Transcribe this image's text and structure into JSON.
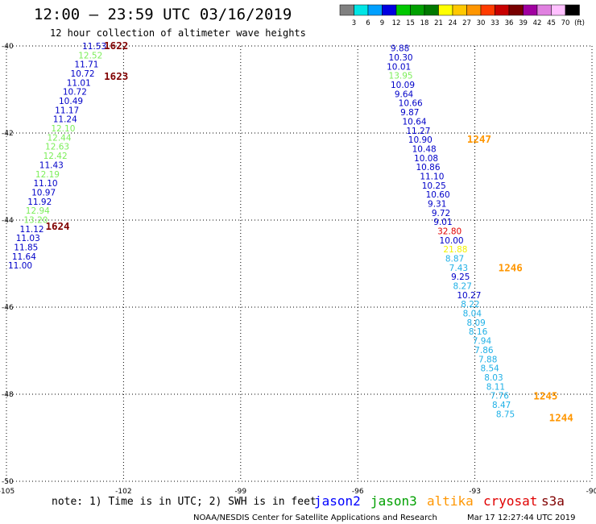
{
  "chart_data": {
    "type": "scatter",
    "title": "12:00 – 23:59 UTC 03/16/2019",
    "subtitle": "12 hour collection of altimeter wave heights",
    "x_ticks": [
      "-105",
      "-102",
      "-99",
      "-96",
      "-93",
      "-90"
    ],
    "y_ticks": [
      "-40",
      "-42",
      "-44",
      "-46",
      "-48",
      "-50"
    ],
    "xlim": [
      -105,
      -90
    ],
    "ylim": [
      -50,
      -40
    ],
    "grid": true,
    "units": "ft",
    "colorbar": {
      "labels": [
        "3",
        "6",
        "9",
        "12",
        "15",
        "18",
        "21",
        "24",
        "27",
        "30",
        "33",
        "36",
        "39",
        "42",
        "45",
        "70",
        "(ft)"
      ],
      "colors": [
        "#808080",
        "#00e5e5",
        "#00a0ff",
        "#0000e0",
        "#00c800",
        "#00a000",
        "#007800",
        "#ffff00",
        "#ffc800",
        "#ff9600",
        "#ff3c00",
        "#c80000",
        "#780000",
        "#a000a0",
        "#e080e0",
        "#ffc0ff",
        "#000000"
      ]
    },
    "series": [
      {
        "points": [
          {
            "lon": -103.1,
            "lat": -40.0,
            "value": "11.53",
            "color": "#0000c8"
          },
          {
            "lon": -103.2,
            "lat": -40.21,
            "value": "12.52",
            "color": "#7cee5a"
          },
          {
            "lon": -103.3,
            "lat": -40.42,
            "value": "11.71",
            "color": "#0000c8"
          },
          {
            "lon": -103.4,
            "lat": -40.63,
            "value": "10.72",
            "color": "#0000c8"
          },
          {
            "lon": -103.5,
            "lat": -40.84,
            "value": "11.01",
            "color": "#0000c8"
          },
          {
            "lon": -103.6,
            "lat": -41.05,
            "value": "10.72",
            "color": "#0000c8"
          },
          {
            "lon": -103.7,
            "lat": -41.26,
            "value": "10.49",
            "color": "#0000c8"
          },
          {
            "lon": -103.8,
            "lat": -41.47,
            "value": "11.17",
            "color": "#0000c8"
          },
          {
            "lon": -103.85,
            "lat": -41.68,
            "value": "11.24",
            "color": "#0000c8"
          },
          {
            "lon": -103.9,
            "lat": -41.89,
            "value": "12.10",
            "color": "#7cee5a"
          },
          {
            "lon": -104.0,
            "lat": -42.1,
            "value": "12.44",
            "color": "#7cee5a"
          },
          {
            "lon": -104.05,
            "lat": -42.31,
            "value": "12.63",
            "color": "#7cee5a"
          },
          {
            "lon": -104.1,
            "lat": -42.52,
            "value": "12.42",
            "color": "#7cee5a"
          },
          {
            "lon": -104.2,
            "lat": -42.73,
            "value": "11.43",
            "color": "#0000c8"
          },
          {
            "lon": -104.3,
            "lat": -42.94,
            "value": "12.19",
            "color": "#7cee5a"
          },
          {
            "lon": -104.35,
            "lat": -43.15,
            "value": "11.10",
            "color": "#0000c8"
          },
          {
            "lon": -104.4,
            "lat": -43.36,
            "value": "10.97",
            "color": "#0000c8"
          },
          {
            "lon": -104.5,
            "lat": -43.57,
            "value": "11.92",
            "color": "#0000c8"
          },
          {
            "lon": -104.55,
            "lat": -43.78,
            "value": "12.94",
            "color": "#7cee5a"
          },
          {
            "lon": -104.6,
            "lat": -43.99,
            "value": "13.20",
            "color": "#7cee5a"
          },
          {
            "lon": -104.7,
            "lat": -44.2,
            "value": "11.12",
            "color": "#0000c8"
          },
          {
            "lon": -104.8,
            "lat": -44.41,
            "value": "11.03",
            "color": "#0000c8"
          },
          {
            "lon": -104.85,
            "lat": -44.62,
            "value": "11.85",
            "color": "#0000c8"
          },
          {
            "lon": -104.9,
            "lat": -44.83,
            "value": "11.64",
            "color": "#0000c8"
          },
          {
            "lon": -105.0,
            "lat": -45.04,
            "value": "11.00",
            "color": "#0000c8"
          },
          {
            "lon": -95.2,
            "lat": -40.05,
            "value": "9.88",
            "color": "#0000c8"
          },
          {
            "lon": -95.25,
            "lat": -40.26,
            "value": "10.30",
            "color": "#0000c8"
          },
          {
            "lon": -95.3,
            "lat": -40.47,
            "value": "10.01",
            "color": "#0000c8"
          },
          {
            "lon": -95.25,
            "lat": -40.68,
            "value": "13.95",
            "color": "#7cee5a"
          },
          {
            "lon": -95.2,
            "lat": -40.89,
            "value": "10.09",
            "color": "#0000c8"
          },
          {
            "lon": -95.1,
            "lat": -41.1,
            "value": "9.64",
            "color": "#0000c8"
          },
          {
            "lon": -95.0,
            "lat": -41.31,
            "value": "10.66",
            "color": "#0000c8"
          },
          {
            "lon": -94.95,
            "lat": -41.52,
            "value": "9.87",
            "color": "#0000c8"
          },
          {
            "lon": -94.9,
            "lat": -41.73,
            "value": "10.64",
            "color": "#0000c8"
          },
          {
            "lon": -94.8,
            "lat": -41.94,
            "value": "11.27",
            "color": "#0000c8"
          },
          {
            "lon": -94.75,
            "lat": -42.15,
            "value": "10.90",
            "color": "#0000c8"
          },
          {
            "lon": -94.65,
            "lat": -42.36,
            "value": "10.48",
            "color": "#0000c8"
          },
          {
            "lon": -94.6,
            "lat": -42.57,
            "value": "10.08",
            "color": "#0000c8"
          },
          {
            "lon": -94.55,
            "lat": -42.78,
            "value": "10.86",
            "color": "#0000c8"
          },
          {
            "lon": -94.45,
            "lat": -42.99,
            "value": "11.10",
            "color": "#0000c8"
          },
          {
            "lon": -94.4,
            "lat": -43.2,
            "value": "10.25",
            "color": "#0000c8"
          },
          {
            "lon": -94.3,
            "lat": -43.41,
            "value": "10.60",
            "color": "#0000c8"
          },
          {
            "lon": -94.25,
            "lat": -43.62,
            "value": "9.31",
            "color": "#0000c8"
          },
          {
            "lon": -94.15,
            "lat": -43.83,
            "value": "9.72",
            "color": "#0000c8"
          },
          {
            "lon": -94.1,
            "lat": -44.04,
            "value": "9.01",
            "color": "#0000c8"
          },
          {
            "lon": -94.0,
            "lat": -44.25,
            "value": "32.80",
            "color": "#e00000"
          },
          {
            "lon": -93.95,
            "lat": -44.46,
            "value": "10.00",
            "color": "#0000c8"
          },
          {
            "lon": -93.85,
            "lat": -44.67,
            "value": "21.88",
            "color": "#f2f200"
          },
          {
            "lon": -93.8,
            "lat": -44.88,
            "value": "8.87",
            "color": "#1fb0e6"
          },
          {
            "lon": -93.7,
            "lat": -45.09,
            "value": "7.43",
            "color": "#1fb0e6"
          },
          {
            "lon": -93.65,
            "lat": -45.3,
            "value": "9.25",
            "color": "#0000c8"
          },
          {
            "lon": -93.6,
            "lat": -45.51,
            "value": "8.27",
            "color": "#1fb0e6"
          },
          {
            "lon": -93.5,
            "lat": -45.72,
            "value": "10.27",
            "color": "#0000c8"
          },
          {
            "lon": -93.4,
            "lat": -45.93,
            "value": "8.22",
            "color": "#1fb0e6"
          },
          {
            "lon": -93.35,
            "lat": -46.14,
            "value": "8.04",
            "color": "#1fb0e6"
          },
          {
            "lon": -93.25,
            "lat": -46.35,
            "value": "8.09",
            "color": "#1fb0e6"
          },
          {
            "lon": -93.2,
            "lat": -46.56,
            "value": "8.16",
            "color": "#1fb0e6"
          },
          {
            "lon": -93.1,
            "lat": -46.77,
            "value": "7.94",
            "color": "#1fb0e6"
          },
          {
            "lon": -93.05,
            "lat": -46.98,
            "value": "7.86",
            "color": "#1fb0e6"
          },
          {
            "lon": -92.95,
            "lat": -47.19,
            "value": "7.88",
            "color": "#1fb0e6"
          },
          {
            "lon": -92.9,
            "lat": -47.4,
            "value": "8.54",
            "color": "#1fb0e6"
          },
          {
            "lon": -92.8,
            "lat": -47.61,
            "value": "8.03",
            "color": "#1fb0e6"
          },
          {
            "lon": -92.75,
            "lat": -47.82,
            "value": "8.11",
            "color": "#1fb0e6"
          },
          {
            "lon": -92.65,
            "lat": -48.03,
            "value": "7.76",
            "color": "#1fb0e6"
          },
          {
            "lon": -92.6,
            "lat": -48.24,
            "value": "8.47",
            "color": "#1fb0e6"
          },
          {
            "lon": -92.5,
            "lat": -48.45,
            "value": "8.75",
            "color": "#1fb0e6"
          }
        ]
      }
    ],
    "time_labels": [
      {
        "text": "1622",
        "lon": -102.5,
        "lat": -40.0,
        "color": "#800000"
      },
      {
        "text": "1623",
        "lon": -102.5,
        "lat": -40.7,
        "color": "#800000"
      },
      {
        "text": "1624",
        "lon": -104.0,
        "lat": -44.15,
        "color": "#800000"
      },
      {
        "text": "1247",
        "lon": -93.2,
        "lat": -42.15,
        "color": "#ff9600"
      },
      {
        "text": "1246",
        "lon": -92.4,
        "lat": -45.1,
        "color": "#ff9600"
      },
      {
        "text": "1245",
        "lon": -91.5,
        "lat": -48.05,
        "color": "#ff9600"
      },
      {
        "text": "1244",
        "lon": -91.1,
        "lat": -48.55,
        "color": "#ff9600"
      }
    ]
  },
  "satellites": [
    {
      "name": "jason2",
      "color": "#0000ff"
    },
    {
      "name": "jason3",
      "color": "#00a000"
    },
    {
      "name": "altika",
      "color": "#ff9600"
    },
    {
      "name": "cryosat",
      "color": "#e00000"
    },
    {
      "name": "s3a",
      "color": "#800000"
    }
  ],
  "footer": {
    "note": "note: 1) Time is in UTC; 2) SWH is in feet",
    "credit": "NOAA/NESDIS Center for Satellite Applications and Research",
    "timestamp": "Mar 17 12:27:44 UTC 2019"
  }
}
